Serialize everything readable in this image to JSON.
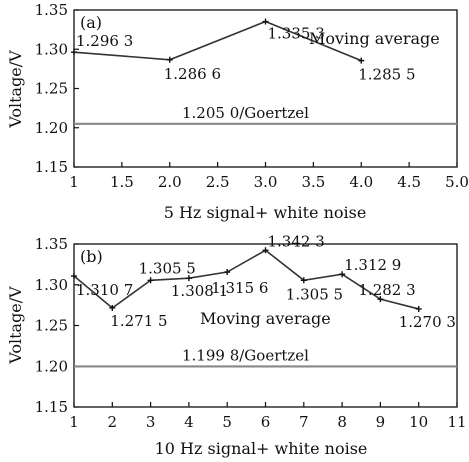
{
  "chart_data": [
    {
      "type": "line",
      "panel_label": "(a)",
      "xlabel": "5 Hz signal+ white noise",
      "ylabel": "Voltage/V",
      "xlim": [
        1,
        5.0
      ],
      "ylim": [
        1.15,
        1.35
      ],
      "x_tick_labels": [
        "1",
        "1.5",
        "2.0",
        "2.5",
        "3.0",
        "3.5",
        "4.0",
        "4.5",
        "5.0"
      ],
      "x_tick_values": [
        1,
        1.5,
        2,
        2.5,
        3,
        3.5,
        4,
        4.5,
        5
      ],
      "y_tick_labels": [
        "1.15",
        "1.20",
        "1.25",
        "1.30",
        "1.35"
      ],
      "y_tick_values": [
        1.15,
        1.2,
        1.25,
        1.3,
        1.35
      ],
      "series": [
        {
          "name": "Moving average",
          "x": [
            1,
            2,
            3,
            4
          ],
          "y": [
            1.2963,
            1.2866,
            1.3353,
            1.2855
          ],
          "labels": [
            "1.296 3",
            "1.286 6",
            "1.335 3",
            "1.285 5"
          ],
          "color": "#333333"
        }
      ],
      "reference": {
        "value": 1.205,
        "label": "1.205 0/Goertzel",
        "color": "#888888"
      }
    },
    {
      "type": "line",
      "panel_label": "(b)",
      "xlabel": "10 Hz signal+ white noise",
      "ylabel": "Voltage/V",
      "xlim": [
        1,
        11
      ],
      "ylim": [
        1.15,
        1.35
      ],
      "x_tick_labels": [
        "1",
        "2",
        "3",
        "4",
        "5",
        "6",
        "7",
        "8",
        "9",
        "10",
        "11"
      ],
      "x_tick_values": [
        1,
        2,
        3,
        4,
        5,
        6,
        7,
        8,
        9,
        10,
        11
      ],
      "y_tick_labels": [
        "1.15",
        "1.20",
        "1.25",
        "1.30",
        "1.35"
      ],
      "y_tick_values": [
        1.15,
        1.2,
        1.25,
        1.3,
        1.35
      ],
      "series": [
        {
          "name": "Moving average",
          "x": [
            1,
            2,
            3,
            4,
            5,
            6,
            7,
            8,
            9,
            10
          ],
          "y": [
            1.3107,
            1.2715,
            1.3055,
            1.3081,
            1.3156,
            1.3423,
            1.3055,
            1.3129,
            1.2823,
            1.2703
          ],
          "labels": [
            "1.310 7",
            "1.271 5",
            "1.305 5",
            "1.308 1",
            "1.315 6",
            "1.342 3",
            "1.305 5",
            "1.312 9",
            "1.282 3",
            "1.270 3"
          ],
          "color": "#333333"
        }
      ],
      "reference": {
        "value": 1.1998,
        "label": "1.199 8/Goertzel",
        "color": "#888888"
      }
    }
  ]
}
